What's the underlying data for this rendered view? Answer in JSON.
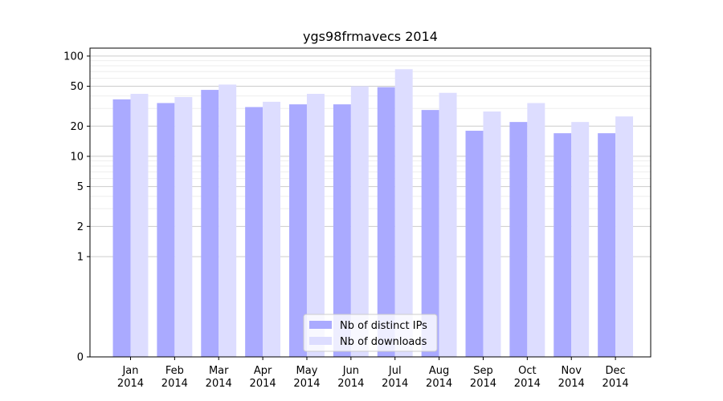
{
  "chart_data": {
    "type": "bar",
    "title": "ygs98frmavecs 2014",
    "xlabel": "",
    "ylabel": "",
    "yscale": "symlog",
    "ylim": [
      0,
      120
    ],
    "yticks": [
      0,
      1,
      2,
      5,
      10,
      20,
      50,
      100
    ],
    "ytick_labels": [
      "0",
      "1",
      "2",
      "5",
      "10",
      "20",
      "50",
      "100"
    ],
    "categories": [
      "Jan",
      "Feb",
      "Mar",
      "Apr",
      "May",
      "Jun",
      "Jul",
      "Aug",
      "Sep",
      "Oct",
      "Nov",
      "Dec"
    ],
    "category_sublabels": [
      "2014",
      "2014",
      "2014",
      "2014",
      "2014",
      "2014",
      "2014",
      "2014",
      "2014",
      "2014",
      "2014",
      "2014"
    ],
    "series": [
      {
        "name": "Nb of distinct IPs",
        "color": "#aaaaff",
        "values": [
          37,
          34,
          46,
          31,
          33,
          33,
          49,
          29,
          18,
          22,
          17,
          17
        ]
      },
      {
        "name": "Nb of downloads",
        "color": "#ddddff",
        "values": [
          42,
          39,
          52,
          35,
          42,
          50,
          74,
          43,
          28,
          34,
          22,
          25
        ]
      }
    ],
    "grid": true,
    "legend": "bottom-center"
  }
}
